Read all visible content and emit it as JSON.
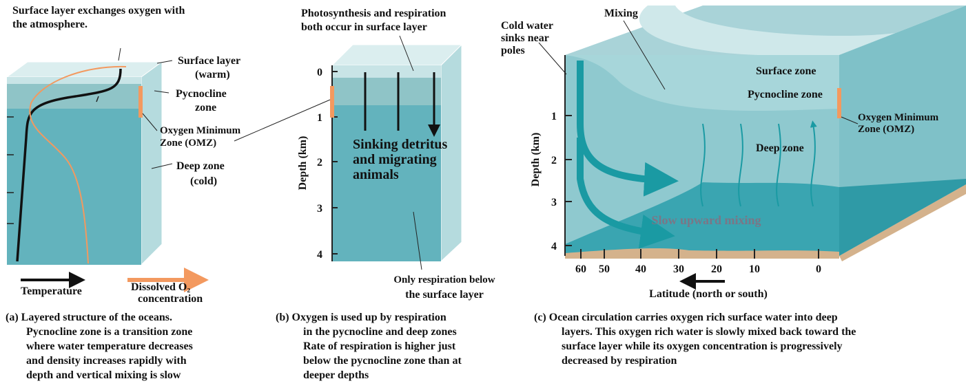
{
  "panel_a": {
    "top_note": [
      "Surface layer exchanges oxygen with",
      "the atmosphere."
    ],
    "surface_label": [
      "Surface layer",
      "(warm)"
    ],
    "pycnocline_label": [
      "Pycnocline",
      "zone"
    ],
    "omz_label": [
      "Oxygen Minimum",
      "Zone (OMZ)"
    ],
    "deep_label": [
      "Deep zone",
      "(cold)"
    ],
    "legend": {
      "temperature": "Temperature",
      "oxygen": [
        "Dissolved O₂",
        "concentration"
      ]
    },
    "caption": [
      "(a) Layered structure of the oceans.",
      "Pycnocline zone is a transition zone",
      "where water temperature decreases",
      "and density increases rapidly with",
      "depth and vertical mixing is slow"
    ]
  },
  "panel_b": {
    "top_note": [
      "Photosynthesis and respiration",
      "both occur in surface layer"
    ],
    "y_axis": {
      "label": "Depth (km)",
      "ticks": [
        0,
        1,
        2,
        3,
        4
      ]
    },
    "arrows_label": [
      "Sinking detritus",
      "and migrating",
      "animals"
    ],
    "bottom_note": [
      "Only respiration below",
      "the surface layer"
    ],
    "caption": [
      "(b)  Oxygen is used up by respiration",
      "in the pycnocline and deep zones",
      "Rate of respiration is higher just",
      "below the pycnocline zone than at",
      "deeper depths"
    ]
  },
  "panel_c": {
    "mixing": "Mixing",
    "cold_water": [
      "Cold water",
      "sinks near",
      "poles"
    ],
    "surface_zone": "Surface zone",
    "pycnocline_zone": "Pycnocline zone",
    "deep_zone": "Deep zone",
    "omz_label": [
      "Oxygen Minimum",
      "Zone (OMZ)"
    ],
    "upward": "Slow upward mixing",
    "y_axis": {
      "label": "Depth (km)",
      "ticks": [
        1,
        2,
        3,
        4
      ]
    },
    "x_axis": {
      "label": "Latitude (north or south)",
      "ticks": [
        60,
        50,
        40,
        30,
        20,
        10,
        0
      ]
    },
    "caption": [
      "(c) Ocean circulation carries oxygen rich surface water into deep",
      "layers. This oxygen rich water is slowly mixed back toward the",
      "surface layer while its oxygen concentration is progressively",
      "decreased by respiration"
    ]
  }
}
